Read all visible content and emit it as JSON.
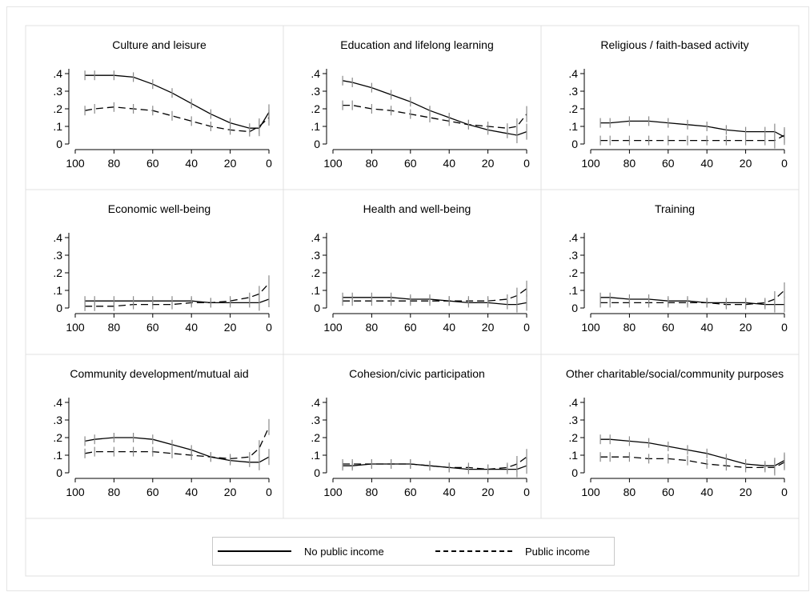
{
  "chart_data": {
    "type": "line",
    "shared_xlim": [
      0,
      100
    ],
    "shared_ylim": [
      0,
      0.4
    ],
    "x_ticks": [
      "100",
      "80",
      "60",
      "40",
      "20",
      "0"
    ],
    "y_ticks": [
      "0",
      ".1",
      ".2",
      ".3",
      ".4"
    ],
    "x_axis": "reversed",
    "grid": false,
    "legend": {
      "placement": "bottom",
      "entries": [
        {
          "name": "No public income",
          "style": "solid"
        },
        {
          "name": "Public income",
          "style": "dashed"
        }
      ]
    },
    "panels": [
      {
        "title": "Culture and leisure",
        "series": [
          {
            "name": "No public income",
            "x": [
              95,
              90,
              80,
              70,
              60,
              50,
              40,
              30,
              20,
              10,
              5,
              0
            ],
            "values": [
              0.39,
              0.39,
              0.39,
              0.38,
              0.34,
              0.29,
              0.23,
              0.17,
              0.12,
              0.09,
              0.09,
              0.18
            ]
          },
          {
            "name": "Public income",
            "x": [
              95,
              90,
              80,
              70,
              60,
              50,
              40,
              30,
              20,
              10,
              5,
              0
            ],
            "values": [
              0.19,
              0.2,
              0.21,
              0.2,
              0.19,
              0.16,
              0.13,
              0.1,
              0.08,
              0.07,
              0.1,
              0.15
            ]
          }
        ]
      },
      {
        "title": "Education and lifelong learning",
        "series": [
          {
            "name": "No public income",
            "x": [
              95,
              90,
              80,
              70,
              60,
              50,
              40,
              30,
              20,
              10,
              5,
              0
            ],
            "values": [
              0.36,
              0.35,
              0.32,
              0.28,
              0.24,
              0.19,
              0.15,
              0.11,
              0.08,
              0.06,
              0.05,
              0.07
            ]
          },
          {
            "name": "Public income",
            "x": [
              95,
              90,
              80,
              70,
              60,
              50,
              40,
              30,
              20,
              10,
              5,
              0
            ],
            "values": [
              0.22,
              0.22,
              0.2,
              0.19,
              0.17,
              0.15,
              0.13,
              0.11,
              0.1,
              0.09,
              0.1,
              0.17
            ]
          }
        ]
      },
      {
        "title": "Religious / faith-based activity",
        "series": [
          {
            "name": "No public income",
            "x": [
              95,
              90,
              80,
              70,
              60,
              50,
              40,
              30,
              20,
              10,
              5,
              0
            ],
            "values": [
              0.12,
              0.12,
              0.13,
              0.13,
              0.12,
              0.11,
              0.1,
              0.08,
              0.07,
              0.07,
              0.07,
              0.04
            ]
          },
          {
            "name": "Public income",
            "x": [
              95,
              90,
              80,
              70,
              60,
              50,
              40,
              30,
              20,
              10,
              5,
              0
            ],
            "values": [
              0.02,
              0.02,
              0.02,
              0.02,
              0.02,
              0.02,
              0.02,
              0.02,
              0.02,
              0.02,
              0.02,
              0.05
            ]
          }
        ]
      },
      {
        "title": "Economic well-being",
        "series": [
          {
            "name": "No public income",
            "x": [
              95,
              90,
              80,
              70,
              60,
              50,
              40,
              30,
              20,
              10,
              5,
              0
            ],
            "values": [
              0.04,
              0.04,
              0.04,
              0.04,
              0.04,
              0.04,
              0.04,
              0.03,
              0.03,
              0.03,
              0.03,
              0.05
            ]
          },
          {
            "name": "Public income",
            "x": [
              95,
              90,
              80,
              70,
              60,
              50,
              40,
              30,
              20,
              10,
              5,
              0
            ],
            "values": [
              0.01,
              0.01,
              0.01,
              0.02,
              0.02,
              0.02,
              0.03,
              0.03,
              0.04,
              0.06,
              0.08,
              0.14
            ]
          }
        ]
      },
      {
        "title": "Health and well-being",
        "series": [
          {
            "name": "No public income",
            "x": [
              95,
              90,
              80,
              70,
              60,
              50,
              40,
              30,
              20,
              10,
              5,
              0
            ],
            "values": [
              0.06,
              0.06,
              0.06,
              0.06,
              0.05,
              0.05,
              0.04,
              0.03,
              0.03,
              0.02,
              0.02,
              0.03
            ]
          },
          {
            "name": "Public income",
            "x": [
              95,
              90,
              80,
              70,
              60,
              50,
              40,
              30,
              20,
              10,
              5,
              0
            ],
            "values": [
              0.04,
              0.04,
              0.04,
              0.04,
              0.04,
              0.04,
              0.04,
              0.04,
              0.04,
              0.05,
              0.07,
              0.11
            ]
          }
        ]
      },
      {
        "title": "Training",
        "series": [
          {
            "name": "No public income",
            "x": [
              95,
              90,
              80,
              70,
              60,
              50,
              40,
              30,
              20,
              10,
              5,
              0
            ],
            "values": [
              0.06,
              0.06,
              0.05,
              0.05,
              0.04,
              0.04,
              0.03,
              0.03,
              0.03,
              0.02,
              0.02,
              0.02
            ]
          },
          {
            "name": "Public income",
            "x": [
              95,
              90,
              80,
              70,
              60,
              50,
              40,
              30,
              20,
              10,
              5,
              0
            ],
            "values": [
              0.03,
              0.03,
              0.03,
              0.03,
              0.03,
              0.03,
              0.03,
              0.02,
              0.02,
              0.03,
              0.05,
              0.1
            ]
          }
        ]
      },
      {
        "title": "Community development/mutual aid",
        "series": [
          {
            "name": "No public income",
            "x": [
              95,
              90,
              80,
              70,
              60,
              50,
              40,
              30,
              20,
              10,
              5,
              0
            ],
            "values": [
              0.18,
              0.19,
              0.2,
              0.2,
              0.19,
              0.16,
              0.13,
              0.09,
              0.07,
              0.06,
              0.06,
              0.09
            ]
          },
          {
            "name": "Public income",
            "x": [
              95,
              90,
              80,
              70,
              60,
              50,
              40,
              30,
              20,
              10,
              5,
              0
            ],
            "values": [
              0.11,
              0.12,
              0.12,
              0.12,
              0.12,
              0.11,
              0.1,
              0.09,
              0.08,
              0.09,
              0.14,
              0.26
            ]
          }
        ]
      },
      {
        "title": "Cohesion/civic participation",
        "series": [
          {
            "name": "No public income",
            "x": [
              95,
              90,
              80,
              70,
              60,
              50,
              40,
              30,
              20,
              10,
              5,
              0
            ],
            "values": [
              0.04,
              0.04,
              0.05,
              0.05,
              0.05,
              0.04,
              0.03,
              0.02,
              0.02,
              0.02,
              0.02,
              0.04
            ]
          },
          {
            "name": "Public income",
            "x": [
              95,
              90,
              80,
              70,
              60,
              50,
              40,
              30,
              20,
              10,
              5,
              0
            ],
            "values": [
              0.05,
              0.05,
              0.05,
              0.05,
              0.05,
              0.04,
              0.03,
              0.03,
              0.02,
              0.03,
              0.05,
              0.09
            ]
          }
        ]
      },
      {
        "title": "Other charitable/social/community purposes",
        "series": [
          {
            "name": "No public income",
            "x": [
              95,
              90,
              80,
              70,
              60,
              50,
              40,
              30,
              20,
              10,
              5,
              0
            ],
            "values": [
              0.19,
              0.19,
              0.18,
              0.17,
              0.15,
              0.13,
              0.11,
              0.08,
              0.05,
              0.04,
              0.04,
              0.07
            ]
          },
          {
            "name": "Public income",
            "x": [
              95,
              90,
              80,
              70,
              60,
              50,
              40,
              30,
              20,
              10,
              5,
              0
            ],
            "values": [
              0.09,
              0.09,
              0.09,
              0.08,
              0.08,
              0.07,
              0.05,
              0.04,
              0.03,
              0.03,
              0.03,
              0.06
            ]
          }
        ]
      }
    ]
  }
}
